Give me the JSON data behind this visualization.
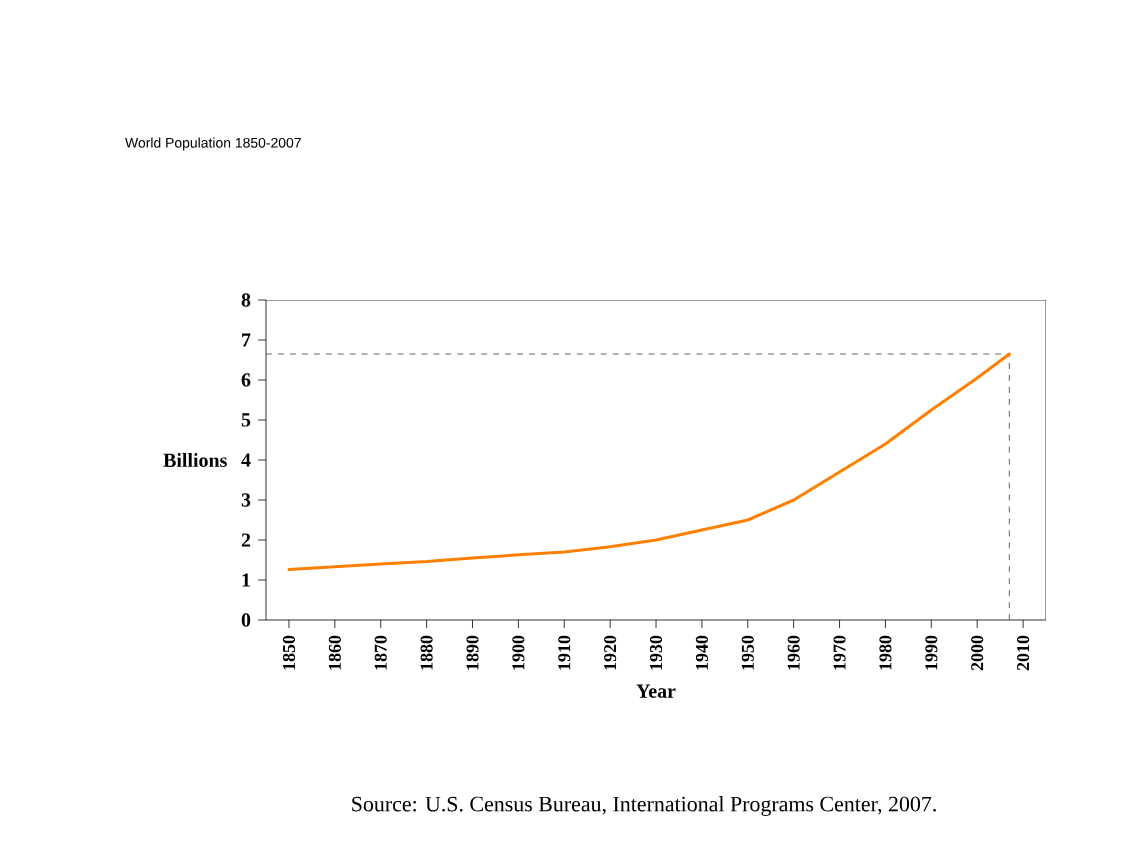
{
  "chart_data": {
    "type": "line",
    "title": "World Population 1850-2007",
    "xlabel": "Year",
    "ylabel": "Billions",
    "x": [
      1850,
      1860,
      1870,
      1880,
      1890,
      1900,
      1910,
      1920,
      1930,
      1940,
      1950,
      1960,
      1970,
      1980,
      1990,
      2000,
      2007
    ],
    "series": [
      {
        "color": "#ff8000",
        "values": [
          1.26,
          1.33,
          1.4,
          1.46,
          1.55,
          1.63,
          1.7,
          1.83,
          2.0,
          2.25,
          2.5,
          3.0,
          3.7,
          4.4,
          5.25,
          6.05,
          6.65
        ]
      }
    ],
    "xlim": [
      1845,
      2015
    ],
    "xticks": [
      1850,
      1860,
      1870,
      1880,
      1890,
      1900,
      1910,
      1920,
      1930,
      1940,
      1950,
      1960,
      1970,
      1980,
      1990,
      2000,
      2010
    ],
    "ylim": [
      0,
      8
    ],
    "yticks": [
      0,
      1,
      2,
      3,
      4,
      5,
      6,
      7,
      8
    ],
    "ref_lines": [
      {
        "axis": "y",
        "value": 6.65,
        "line_style": "dashed",
        "color": "#404040"
      },
      {
        "axis": "x",
        "value": 2007,
        "line_style": "dashed",
        "color": "#404040"
      }
    ],
    "annotations": [
      "Source: U.S. Census Bureau, International Programs Center, 2007."
    ],
    "grid": false,
    "marker": "none",
    "line_style": "solid"
  }
}
